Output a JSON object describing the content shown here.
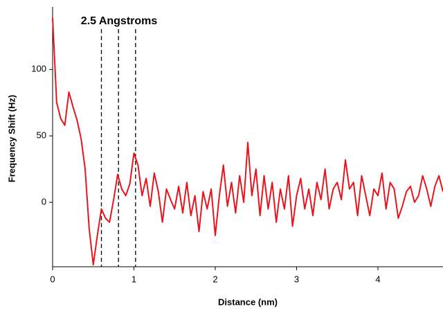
{
  "chart_data": {
    "type": "line",
    "annotation": "2.5 Angstroms",
    "xlabel": "Distance (nm)",
    "ylabel": "Frequency Shift (Hz)",
    "color": "#e8141c",
    "vlines": [
      0.6,
      0.81,
      1.02
    ],
    "xlim": [
      0,
      4.8
    ],
    "ylim": [
      -48,
      145
    ],
    "xticks": [
      0,
      1,
      2,
      3,
      4
    ],
    "yticks": [
      0,
      50,
      100
    ],
    "x": [
      0,
      0.05,
      0.1,
      0.15,
      0.2,
      0.25,
      0.3,
      0.35,
      0.4,
      0.45,
      0.5,
      0.55,
      0.6,
      0.65,
      0.7,
      0.75,
      0.8,
      0.85,
      0.9,
      0.95,
      1,
      1.05,
      1.1,
      1.15,
      1.2,
      1.25,
      1.3,
      1.35,
      1.4,
      1.45,
      1.5,
      1.55,
      1.6,
      1.65,
      1.7,
      1.75,
      1.8,
      1.85,
      1.9,
      1.95,
      2,
      2.05,
      2.1,
      2.15,
      2.2,
      2.25,
      2.3,
      2.35,
      2.4,
      2.45,
      2.5,
      2.55,
      2.6,
      2.65,
      2.7,
      2.75,
      2.8,
      2.85,
      2.9,
      2.95,
      3,
      3.05,
      3.1,
      3.15,
      3.2,
      3.25,
      3.3,
      3.35,
      3.4,
      3.45,
      3.5,
      3.55,
      3.6,
      3.65,
      3.7,
      3.75,
      3.8,
      3.85,
      3.9,
      3.95,
      4,
      4.05,
      4.1,
      4.15,
      4.2,
      4.25,
      4.3,
      4.35,
      4.4,
      4.45,
      4.5,
      4.55,
      4.6,
      4.65,
      4.7,
      4.75,
      4.8
    ],
    "values": [
      139,
      75,
      63,
      58,
      83,
      72,
      62,
      48,
      25,
      -20,
      -47,
      -25,
      -5,
      -12,
      -15,
      2,
      21,
      10,
      5,
      14,
      37,
      28,
      5,
      18,
      -3,
      22,
      8,
      -15,
      10,
      2,
      -5,
      12,
      -8,
      15,
      -10,
      5,
      -22,
      8,
      -5,
      10,
      -25,
      5,
      28,
      -3,
      15,
      -8,
      20,
      0,
      45,
      5,
      25,
      -10,
      20,
      -5,
      15,
      -15,
      10,
      -5,
      20,
      -18,
      5,
      18,
      -5,
      10,
      -10,
      15,
      2,
      25,
      -5,
      10,
      15,
      2,
      32,
      10,
      15,
      -10,
      20,
      5,
      -10,
      10,
      5,
      22,
      -5,
      15,
      10,
      -12,
      -3,
      8,
      12,
      0,
      5,
      20,
      10,
      -3,
      12,
      20,
      8
    ]
  }
}
